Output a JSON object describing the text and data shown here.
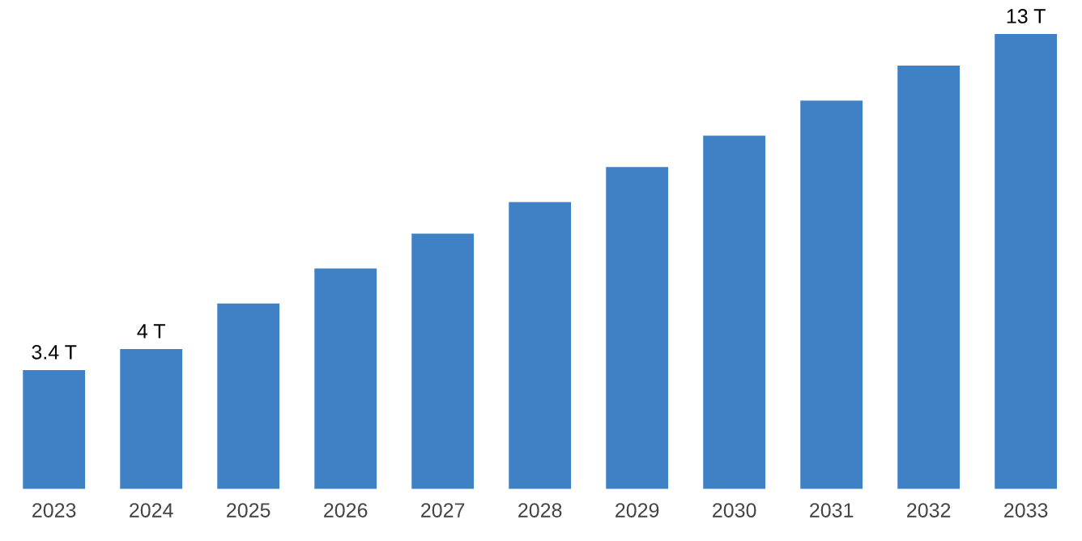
{
  "chart_data": {
    "type": "bar",
    "categories": [
      "2023",
      "2024",
      "2025",
      "2026",
      "2027",
      "2028",
      "2029",
      "2030",
      "2031",
      "2032",
      "2033"
    ],
    "values": [
      3.4,
      4,
      5.3,
      6.3,
      7.3,
      8.2,
      9.2,
      10.1,
      11.1,
      12.1,
      13
    ],
    "value_labels": [
      "3.4 T",
      "4 T",
      null,
      null,
      null,
      null,
      null,
      null,
      null,
      null,
      "13 T"
    ],
    "color": "#3f81c4",
    "grid": false
  }
}
